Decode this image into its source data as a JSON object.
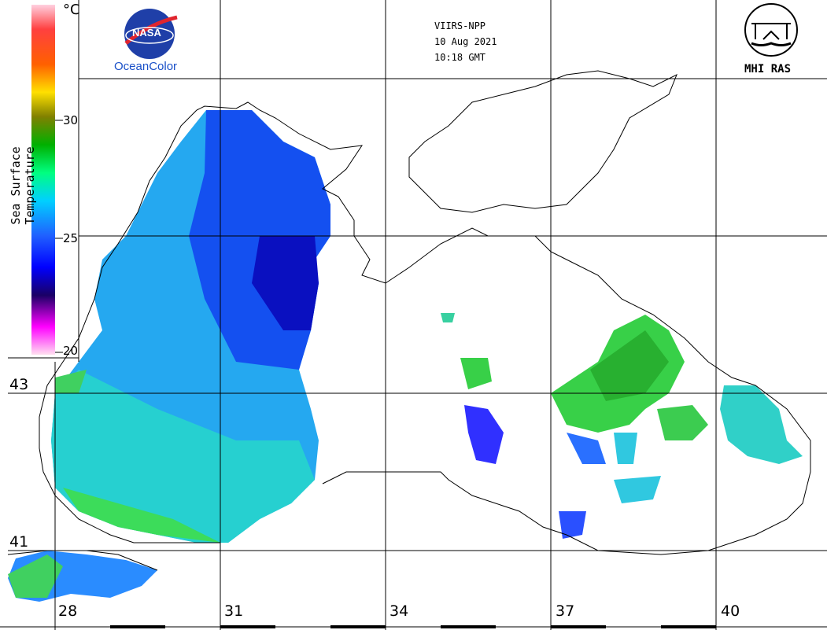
{
  "header": {
    "satellite": "VIIRS-NPP",
    "date": "10 Aug 2021",
    "time": "10:18 GMT"
  },
  "logos": {
    "nasa": "NASA",
    "oceancolor": "OceanColor",
    "mhi": "MHI RAS"
  },
  "colorbar": {
    "title": "Sea Surface Temperature",
    "unit": "°C",
    "ticks": [
      "30",
      "25",
      "20"
    ],
    "range": [
      20,
      35
    ],
    "colors": [
      "#ffe0f0",
      "#ff00ff",
      "#1a0066",
      "#0000ff",
      "#2060ff",
      "#00d0ff",
      "#00ff80",
      "#00b000",
      "#808000",
      "#ffe000",
      "#ff6000",
      "#ff4040",
      "#ffd0e0"
    ]
  },
  "grid": {
    "latitudes": [
      "43",
      "41"
    ],
    "longitudes": [
      "28",
      "31",
      "34",
      "37",
      "40"
    ]
  },
  "colors": {
    "cold": "#1a1aff",
    "mid": "#22a0ff",
    "warm": "#3ddc8c",
    "hot": "#1ec83c"
  }
}
